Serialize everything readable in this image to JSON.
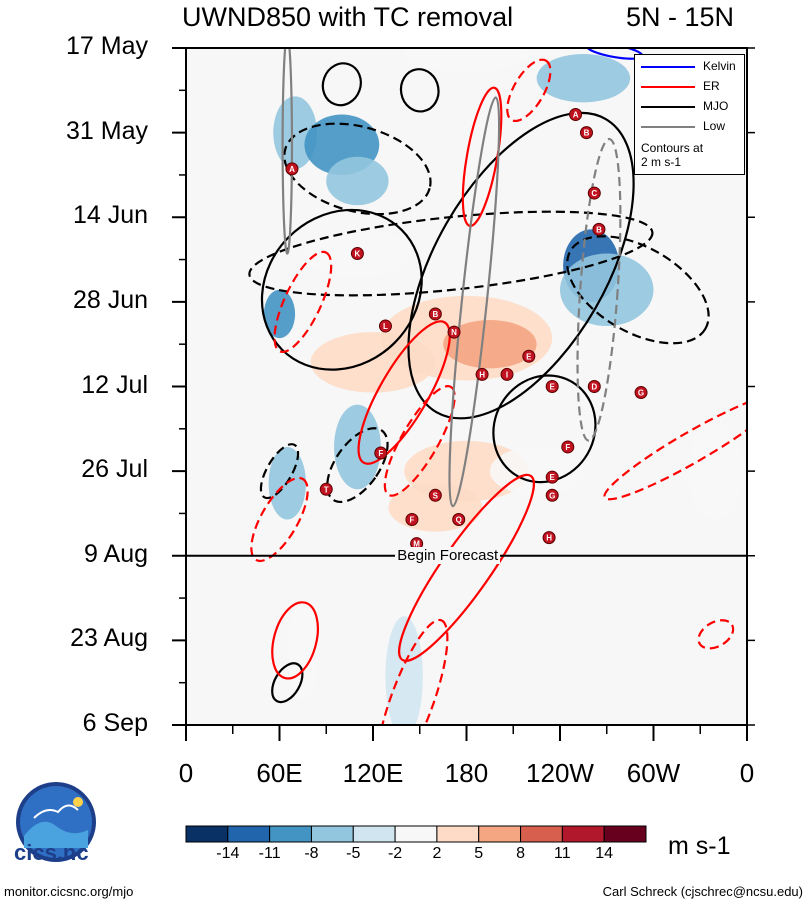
{
  "title": {
    "left": "UWND850 with TC removal",
    "right": "5N - 15N"
  },
  "chart_data": {
    "type": "heatmap",
    "title": "UWND850 with TC removal",
    "subtitle": "5N - 15N",
    "x_tick_labels": [
      "0",
      "60E",
      "120E",
      "180",
      "120W",
      "60W",
      "0"
    ],
    "x_ticks_lon": [
      0,
      60,
      120,
      180,
      240,
      300,
      360
    ],
    "y_tick_labels": [
      "17 May",
      "31 May",
      "14 Jun",
      "28 Jun",
      "12 Jul",
      "26 Jul",
      "9 Aug",
      "23 Aug",
      "6 Sep"
    ],
    "y_ticks_day": [
      0,
      14,
      28,
      42,
      56,
      70,
      84,
      98,
      112
    ],
    "xlim": [
      0,
      360
    ],
    "ylim": [
      0,
      112
    ],
    "forecast_line": {
      "day": 84,
      "label": "Begin Forecast"
    },
    "colorbar": {
      "labels": [
        "-14",
        "-11",
        "-8",
        "-5",
        "-2",
        "2",
        "5",
        "8",
        "11",
        "14"
      ],
      "colors": [
        "#0a3166",
        "#2166ac",
        "#4393c3",
        "#92c5de",
        "#d1e5f0",
        "#f7f7f7",
        "#fddbc7",
        "#f4a582",
        "#d6604d",
        "#b2182b",
        "#67001f"
      ],
      "units": "m s-1"
    },
    "legend": {
      "entries": [
        {
          "name": "Kelvin",
          "color": "#0000ff"
        },
        {
          "name": "ER",
          "color": "#ff0000"
        },
        {
          "name": "MJO",
          "color": "#000000"
        },
        {
          "name": "Low",
          "color": "#808080"
        }
      ],
      "note": [
        "Contours at",
        "2 m s-1"
      ]
    },
    "anomalies": [
      {
        "lon": 70,
        "day": 14,
        "rx": 14,
        "ry": 6,
        "v": -5
      },
      {
        "lon": 100,
        "day": 16,
        "rx": 24,
        "ry": 5,
        "v": -8
      },
      {
        "lon": 110,
        "day": 22,
        "rx": 20,
        "ry": 4,
        "v": -5
      },
      {
        "lon": 60,
        "day": 44,
        "rx": 10,
        "ry": 4,
        "v": -8
      },
      {
        "lon": 65,
        "day": 72,
        "rx": 12,
        "ry": 6,
        "v": -5
      },
      {
        "lon": 110,
        "day": 66,
        "rx": 15,
        "ry": 7,
        "v": -5
      },
      {
        "lon": 180,
        "day": 1,
        "rx": 40,
        "ry": 3,
        "v": 2
      },
      {
        "lon": 255,
        "day": 5,
        "rx": 30,
        "ry": 4,
        "v": -5
      },
      {
        "lon": 260,
        "day": 36,
        "rx": 18,
        "ry": 6,
        "v": -11
      },
      {
        "lon": 270,
        "day": 40,
        "rx": 30,
        "ry": 6,
        "v": -5
      },
      {
        "lon": 180,
        "day": 48,
        "rx": 55,
        "ry": 7,
        "v": 5
      },
      {
        "lon": 195,
        "day": 49,
        "rx": 30,
        "ry": 4,
        "v": 8
      },
      {
        "lon": 120,
        "day": 52,
        "rx": 40,
        "ry": 5,
        "v": 5
      },
      {
        "lon": 110,
        "day": 34,
        "rx": 35,
        "ry": 4,
        "v": 2
      },
      {
        "lon": 180,
        "day": 70,
        "rx": 40,
        "ry": 5,
        "v": 5
      },
      {
        "lon": 160,
        "day": 76,
        "rx": 30,
        "ry": 4,
        "v": 5
      },
      {
        "lon": 225,
        "day": 70,
        "rx": 30,
        "ry": 4,
        "v": 2
      },
      {
        "lon": 75,
        "day": 100,
        "rx": 10,
        "ry": 8,
        "v": 2
      },
      {
        "lon": 140,
        "day": 104,
        "rx": 12,
        "ry": 10,
        "v": -2
      },
      {
        "lon": 340,
        "day": 70,
        "rx": 18,
        "ry": 8,
        "v": 2
      }
    ],
    "contours": [
      {
        "wave": "MJO",
        "dashed": false,
        "lon": 100,
        "day": 40,
        "rx": 48,
        "ry": 14,
        "rot": 45
      },
      {
        "wave": "MJO",
        "dashed": false,
        "lon": 215,
        "day": 36,
        "rx": 55,
        "ry": 28,
        "rot": 30
      },
      {
        "wave": "MJO",
        "dashed": false,
        "lon": 230,
        "day": 63,
        "rx": 32,
        "ry": 9,
        "rot": 30
      },
      {
        "wave": "MJO",
        "dashed": false,
        "lon": 100,
        "day": 6,
        "rx": 12,
        "ry": 3.5,
        "rot": 20
      },
      {
        "wave": "MJO",
        "dashed": false,
        "lon": 150,
        "day": 7,
        "rx": 12,
        "ry": 3.5,
        "rot": -10
      },
      {
        "wave": "MJO",
        "dashed": false,
        "lon": 65,
        "day": 105,
        "rx": 8,
        "ry": 3.5,
        "rot": 30
      },
      {
        "wave": "MJO",
        "dashed": true,
        "lon": 110,
        "day": 20,
        "rx": 48,
        "ry": 7,
        "rot": 15
      },
      {
        "wave": "MJO",
        "dashed": true,
        "lon": 170,
        "day": 34,
        "rx": 130,
        "ry": 6,
        "rot": -6
      },
      {
        "wave": "MJO",
        "dashed": true,
        "lon": 290,
        "day": 40,
        "rx": 50,
        "ry": 7,
        "rot": 30
      },
      {
        "wave": "MJO",
        "dashed": true,
        "lon": 110,
        "day": 69,
        "rx": 14,
        "ry": 7,
        "rot": 35
      },
      {
        "wave": "MJO",
        "dashed": true,
        "lon": 60,
        "day": 70,
        "rx": 8,
        "ry": 5,
        "rot": 30
      },
      {
        "wave": "ER",
        "dashed": false,
        "lon": 140,
        "day": 57,
        "rx": 52,
        "ry": 4,
        "rot": -60
      },
      {
        "wave": "ER",
        "dashed": false,
        "lon": 190,
        "day": 18,
        "rx": 45,
        "ry": 2.5,
        "rot": -80
      },
      {
        "wave": "ER",
        "dashed": false,
        "lon": 180,
        "day": 86,
        "rx": 72,
        "ry": 4,
        "rot": -55
      },
      {
        "wave": "ER",
        "dashed": false,
        "lon": 70,
        "day": 98,
        "rx": 25,
        "ry": 3.5,
        "rot": -75
      },
      {
        "wave": "ER",
        "dashed": true,
        "lon": 75,
        "day": 42,
        "rx": 35,
        "ry": 3,
        "rot": -65
      },
      {
        "wave": "ER",
        "dashed": true,
        "lon": 150,
        "day": 65,
        "rx": 40,
        "ry": 3,
        "rot": -60
      },
      {
        "wave": "ER",
        "dashed": true,
        "lon": 60,
        "day": 78,
        "rx": 30,
        "ry": 3,
        "rot": -60
      },
      {
        "wave": "ER",
        "dashed": true,
        "lon": 145,
        "day": 108,
        "rx": 55,
        "ry": 3.5,
        "rot": -70
      },
      {
        "wave": "ER",
        "dashed": true,
        "lon": 220,
        "day": 7,
        "rx": 22,
        "ry": 2.5,
        "rot": -60
      },
      {
        "wave": "ER",
        "dashed": true,
        "lon": 325,
        "day": 66,
        "rx": 65,
        "ry": 2.5,
        "rot": -30
      },
      {
        "wave": "ER",
        "dashed": true,
        "lon": 340,
        "day": 97,
        "rx": 12,
        "ry": 2,
        "rot": -30
      },
      {
        "wave": "Low",
        "dashed": false,
        "lon": 185,
        "day": 42,
        "rx": 8,
        "ry": 34,
        "rot": 6
      },
      {
        "wave": "Low",
        "dashed": false,
        "lon": 65,
        "day": 16,
        "rx": 3,
        "ry": 18,
        "rot": 0
      },
      {
        "wave": "Low",
        "dashed": true,
        "lon": 265,
        "day": 40,
        "rx": 12,
        "ry": 25,
        "rot": 4
      },
      {
        "wave": "Kelvin",
        "dashed": false,
        "lon": 275,
        "day": 0.5,
        "rx": 18,
        "ry": 1,
        "rot": 10
      }
    ],
    "storms": [
      {
        "label": "A",
        "lon": 250,
        "day": 11
      },
      {
        "label": "B",
        "lon": 257,
        "day": 14
      },
      {
        "label": "C",
        "lon": 262,
        "day": 24
      },
      {
        "label": "B",
        "lon": 265,
        "day": 30
      },
      {
        "label": "A",
        "lon": 68,
        "day": 20
      },
      {
        "label": "K",
        "lon": 110,
        "day": 34
      },
      {
        "label": "L",
        "lon": 128,
        "day": 46
      },
      {
        "label": "B",
        "lon": 160,
        "day": 44
      },
      {
        "label": "N",
        "lon": 172,
        "day": 47
      },
      {
        "label": "E",
        "lon": 220,
        "day": 51
      },
      {
        "label": "H",
        "lon": 190,
        "day": 54
      },
      {
        "label": "I",
        "lon": 206,
        "day": 54
      },
      {
        "label": "E",
        "lon": 235,
        "day": 56
      },
      {
        "label": "D",
        "lon": 262,
        "day": 56
      },
      {
        "label": "G",
        "lon": 292,
        "day": 57
      },
      {
        "label": "F",
        "lon": 125,
        "day": 67
      },
      {
        "label": "F",
        "lon": 245,
        "day": 66
      },
      {
        "label": "T",
        "lon": 90,
        "day": 73
      },
      {
        "label": "E",
        "lon": 235,
        "day": 71
      },
      {
        "label": "G",
        "lon": 235,
        "day": 74
      },
      {
        "label": "S",
        "lon": 160,
        "day": 74
      },
      {
        "label": "F",
        "lon": 145,
        "day": 78
      },
      {
        "label": "Q",
        "lon": 175,
        "day": 78
      },
      {
        "label": "M",
        "lon": 148,
        "day": 82
      },
      {
        "label": "H",
        "lon": 233,
        "day": 81
      }
    ]
  },
  "footer": {
    "left": "monitor.cicsnc.org/mjo",
    "right": "Carl Schreck (cjschrec@ncsu.edu)"
  },
  "logo": {
    "text": "cics.nc"
  }
}
